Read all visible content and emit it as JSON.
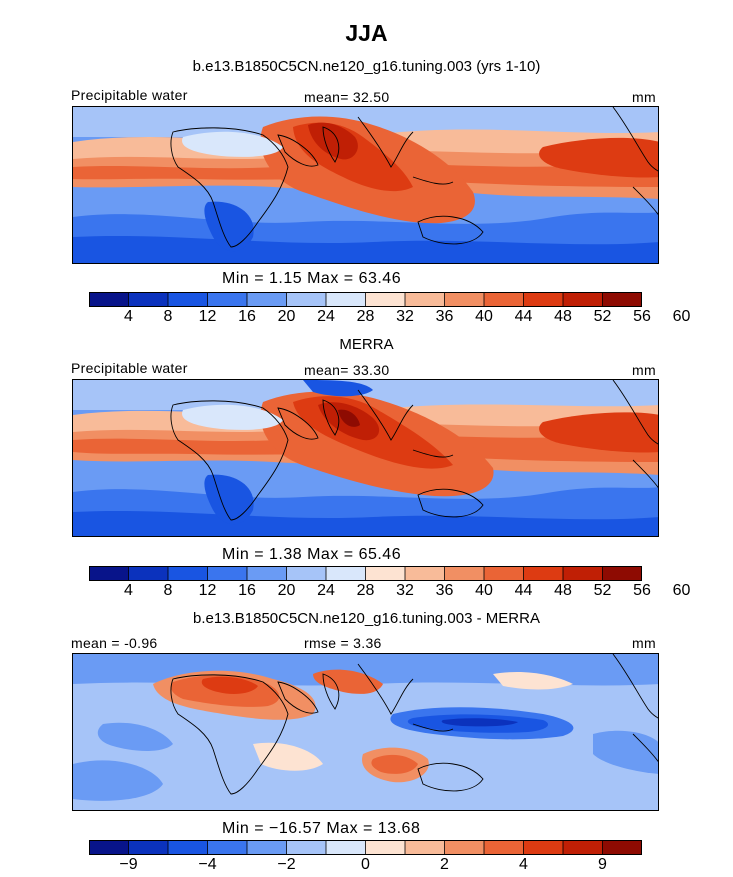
{
  "title": "JJA",
  "palette_abs": [
    "#08148a",
    "#0b32bd",
    "#1955e2",
    "#3a75ee",
    "#6a9bf4",
    "#a6c4f8",
    "#d9e7fb",
    "#fde3d2",
    "#f8bb99",
    "#f18f63",
    "#ea6436",
    "#dd3b12",
    "#c01f05",
    "#8e0b02"
  ],
  "palette_diff": [
    "#08148a",
    "#0b32bd",
    "#1955e2",
    "#3a75ee",
    "#6a9bf4",
    "#a6c4f8",
    "#d9e7fb",
    "#fde3d2",
    "#f8bb99",
    "#f18f63",
    "#ea6436",
    "#dd3b12",
    "#c01f05",
    "#8e0b02"
  ],
  "panels": [
    {
      "title": "b.e13.B1850C5CN.ne120_g16.tuning.003 (yrs 1-10)",
      "left_label": "Precipitable water",
      "center_label": "mean=  32.50",
      "units": "mm",
      "minmax": "Min =    1.15 Max =   63.46",
      "ticks": [
        "4",
        "8",
        "12",
        "16",
        "20",
        "24",
        "28",
        "32",
        "36",
        "40",
        "44",
        "48",
        "52",
        "56",
        "60"
      ]
    },
    {
      "title": "MERRA",
      "left_label": "Precipitable water",
      "center_label": "mean=  33.30",
      "units": "mm",
      "minmax": "Min =    1.38 Max =   65.46",
      "ticks": [
        "4",
        "8",
        "12",
        "16",
        "20",
        "24",
        "28",
        "32",
        "36",
        "40",
        "44",
        "48",
        "52",
        "56",
        "60"
      ]
    },
    {
      "title": "b.e13.B1850C5CN.ne120_g16.tuning.003 - MERRA",
      "left_label": "mean =  -0.96",
      "center_label": "rmse =    3.36",
      "units": "mm",
      "minmax": "Min = −16.57 Max =  13.68",
      "ticks": [
        "−9",
        "−4",
        "−2",
        "0",
        "2",
        "4",
        "9"
      ]
    }
  ]
}
